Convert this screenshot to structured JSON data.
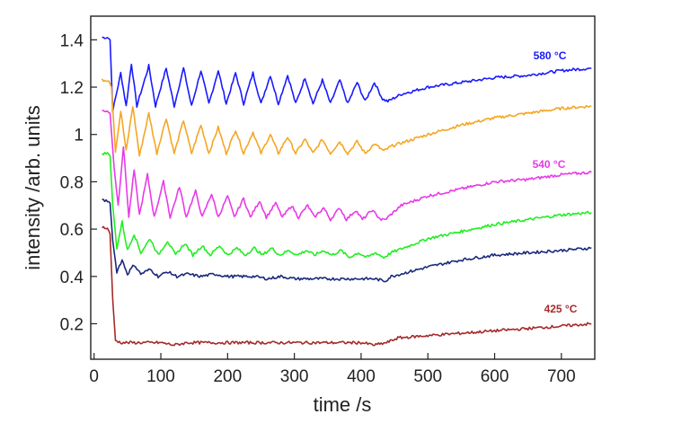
{
  "chart_data": {
    "type": "line",
    "title": "",
    "xlabel": "time /s",
    "ylabel": "intensity /arb. units",
    "xlim": [
      -5,
      750
    ],
    "ylim": [
      0.05,
      1.5
    ],
    "x_ticks": [
      0,
      100,
      200,
      300,
      400,
      500,
      600,
      700
    ],
    "y_ticks": [
      {
        "value": 0.2,
        "label": "0.2"
      },
      {
        "value": 0.4,
        "label": "0.4"
      },
      {
        "value": 0.6,
        "label": "0.6"
      },
      {
        "value": 0.8,
        "label": "0.8"
      },
      {
        "value": 1.0,
        "label": "1"
      },
      {
        "value": 1.2,
        "label": "1.2"
      },
      {
        "value": 1.4,
        "label": "1.4"
      }
    ],
    "grid": false,
    "series": [
      {
        "label": "580 °C",
        "color": "#1a1aff",
        "points": [
          [
            12,
            1.41
          ],
          [
            20,
            1.41
          ],
          [
            24,
            1.4
          ],
          [
            28,
            1.1
          ],
          [
            40,
            1.26
          ],
          [
            48,
            1.12
          ],
          [
            56,
            1.3
          ],
          [
            64,
            1.12
          ],
          [
            82,
            1.29
          ],
          [
            92,
            1.12
          ],
          [
            108,
            1.28
          ],
          [
            120,
            1.12
          ],
          [
            134,
            1.28
          ],
          [
            146,
            1.12
          ],
          [
            160,
            1.27
          ],
          [
            172,
            1.13
          ],
          [
            186,
            1.27
          ],
          [
            198,
            1.13
          ],
          [
            212,
            1.26
          ],
          [
            224,
            1.13
          ],
          [
            238,
            1.26
          ],
          [
            250,
            1.13
          ],
          [
            264,
            1.25
          ],
          [
            276,
            1.13
          ],
          [
            290,
            1.25
          ],
          [
            302,
            1.13
          ],
          [
            316,
            1.24
          ],
          [
            328,
            1.13
          ],
          [
            342,
            1.23
          ],
          [
            354,
            1.13
          ],
          [
            368,
            1.23
          ],
          [
            380,
            1.13
          ],
          [
            394,
            1.22
          ],
          [
            406,
            1.14
          ],
          [
            420,
            1.22
          ],
          [
            432,
            1.15
          ],
          [
            440,
            1.14
          ],
          [
            460,
            1.17
          ],
          [
            500,
            1.2
          ],
          [
            550,
            1.22
          ],
          [
            600,
            1.24
          ],
          [
            650,
            1.25
          ],
          [
            700,
            1.27
          ],
          [
            745,
            1.28
          ]
        ]
      },
      {
        "label": "",
        "color": "#f5a623",
        "points": [
          [
            12,
            1.23
          ],
          [
            22,
            1.23
          ],
          [
            26,
            1.2
          ],
          [
            32,
            0.93
          ],
          [
            40,
            1.1
          ],
          [
            48,
            0.93
          ],
          [
            58,
            1.12
          ],
          [
            68,
            0.91
          ],
          [
            82,
            1.09
          ],
          [
            94,
            0.92
          ],
          [
            108,
            1.07
          ],
          [
            120,
            0.92
          ],
          [
            134,
            1.06
          ],
          [
            146,
            0.92
          ],
          [
            160,
            1.04
          ],
          [
            172,
            0.92
          ],
          [
            186,
            1.03
          ],
          [
            198,
            0.92
          ],
          [
            212,
            1.02
          ],
          [
            224,
            0.92
          ],
          [
            238,
            1.01
          ],
          [
            250,
            0.92
          ],
          [
            264,
            1.0
          ],
          [
            276,
            0.92
          ],
          [
            290,
            0.99
          ],
          [
            302,
            0.92
          ],
          [
            316,
            0.98
          ],
          [
            328,
            0.92
          ],
          [
            342,
            0.98
          ],
          [
            354,
            0.92
          ],
          [
            368,
            0.97
          ],
          [
            380,
            0.92
          ],
          [
            394,
            0.97
          ],
          [
            406,
            0.92
          ],
          [
            420,
            0.96
          ],
          [
            434,
            0.93
          ],
          [
            445,
            0.95
          ],
          [
            500,
            1.0
          ],
          [
            550,
            1.04
          ],
          [
            600,
            1.07
          ],
          [
            650,
            1.09
          ],
          [
            700,
            1.11
          ],
          [
            745,
            1.12
          ]
        ]
      },
      {
        "label": "540 °C",
        "color": "#e83ae8",
        "points": [
          [
            12,
            1.1
          ],
          [
            20,
            1.1
          ],
          [
            24,
            1.09
          ],
          [
            30,
            0.86
          ],
          [
            36,
            0.7
          ],
          [
            44,
            0.95
          ],
          [
            52,
            0.65
          ],
          [
            60,
            0.85
          ],
          [
            68,
            0.66
          ],
          [
            80,
            0.83
          ],
          [
            90,
            0.65
          ],
          [
            104,
            0.8
          ],
          [
            114,
            0.65
          ],
          [
            128,
            0.78
          ],
          [
            138,
            0.65
          ],
          [
            152,
            0.76
          ],
          [
            162,
            0.65
          ],
          [
            176,
            0.75
          ],
          [
            186,
            0.65
          ],
          [
            200,
            0.74
          ],
          [
            210,
            0.65
          ],
          [
            224,
            0.73
          ],
          [
            234,
            0.65
          ],
          [
            248,
            0.72
          ],
          [
            258,
            0.65
          ],
          [
            272,
            0.71
          ],
          [
            282,
            0.65
          ],
          [
            296,
            0.7
          ],
          [
            306,
            0.65
          ],
          [
            320,
            0.7
          ],
          [
            330,
            0.65
          ],
          [
            344,
            0.69
          ],
          [
            354,
            0.64
          ],
          [
            368,
            0.69
          ],
          [
            378,
            0.64
          ],
          [
            392,
            0.68
          ],
          [
            402,
            0.64
          ],
          [
            416,
            0.68
          ],
          [
            430,
            0.64
          ],
          [
            436,
            0.64
          ],
          [
            460,
            0.7
          ],
          [
            500,
            0.74
          ],
          [
            550,
            0.77
          ],
          [
            600,
            0.8
          ],
          [
            650,
            0.81
          ],
          [
            700,
            0.83
          ],
          [
            745,
            0.84
          ]
        ]
      },
      {
        "label": "",
        "color": "#22ee22",
        "points": [
          [
            12,
            0.92
          ],
          [
            20,
            0.92
          ],
          [
            24,
            0.91
          ],
          [
            28,
            0.7
          ],
          [
            34,
            0.52
          ],
          [
            42,
            0.63
          ],
          [
            50,
            0.51
          ],
          [
            60,
            0.58
          ],
          [
            70,
            0.5
          ],
          [
            84,
            0.56
          ],
          [
            96,
            0.49
          ],
          [
            110,
            0.55
          ],
          [
            122,
            0.49
          ],
          [
            136,
            0.54
          ],
          [
            148,
            0.49
          ],
          [
            162,
            0.53
          ],
          [
            174,
            0.49
          ],
          [
            188,
            0.53
          ],
          [
            200,
            0.49
          ],
          [
            214,
            0.52
          ],
          [
            226,
            0.49
          ],
          [
            240,
            0.52
          ],
          [
            252,
            0.49
          ],
          [
            266,
            0.52
          ],
          [
            278,
            0.49
          ],
          [
            292,
            0.51
          ],
          [
            304,
            0.49
          ],
          [
            318,
            0.51
          ],
          [
            330,
            0.49
          ],
          [
            344,
            0.51
          ],
          [
            356,
            0.49
          ],
          [
            370,
            0.51
          ],
          [
            382,
            0.48
          ],
          [
            396,
            0.5
          ],
          [
            408,
            0.48
          ],
          [
            422,
            0.5
          ],
          [
            434,
            0.48
          ],
          [
            445,
            0.5
          ],
          [
            500,
            0.56
          ],
          [
            550,
            0.59
          ],
          [
            600,
            0.62
          ],
          [
            650,
            0.64
          ],
          [
            700,
            0.66
          ],
          [
            745,
            0.67
          ]
        ]
      },
      {
        "label": "",
        "color": "#1b2a7a",
        "points": [
          [
            12,
            0.72
          ],
          [
            20,
            0.72
          ],
          [
            24,
            0.71
          ],
          [
            28,
            0.55
          ],
          [
            34,
            0.42
          ],
          [
            42,
            0.47
          ],
          [
            50,
            0.41
          ],
          [
            60,
            0.45
          ],
          [
            70,
            0.41
          ],
          [
            84,
            0.43
          ],
          [
            96,
            0.4
          ],
          [
            110,
            0.42
          ],
          [
            124,
            0.4
          ],
          [
            140,
            0.41
          ],
          [
            160,
            0.4
          ],
          [
            180,
            0.41
          ],
          [
            200,
            0.4
          ],
          [
            220,
            0.4
          ],
          [
            240,
            0.4
          ],
          [
            260,
            0.39
          ],
          [
            280,
            0.4
          ],
          [
            300,
            0.39
          ],
          [
            320,
            0.39
          ],
          [
            340,
            0.39
          ],
          [
            360,
            0.39
          ],
          [
            380,
            0.39
          ],
          [
            400,
            0.39
          ],
          [
            420,
            0.39
          ],
          [
            436,
            0.38
          ],
          [
            445,
            0.4
          ],
          [
            500,
            0.44
          ],
          [
            550,
            0.47
          ],
          [
            600,
            0.49
          ],
          [
            650,
            0.5
          ],
          [
            700,
            0.51
          ],
          [
            745,
            0.52
          ]
        ]
      },
      {
        "label": "425 °C",
        "color": "#a52a2a",
        "points": [
          [
            12,
            0.61
          ],
          [
            20,
            0.6
          ],
          [
            24,
            0.58
          ],
          [
            28,
            0.3
          ],
          [
            32,
            0.13
          ],
          [
            40,
            0.12
          ],
          [
            60,
            0.12
          ],
          [
            80,
            0.12
          ],
          [
            100,
            0.12
          ],
          [
            120,
            0.11
          ],
          [
            140,
            0.12
          ],
          [
            160,
            0.12
          ],
          [
            180,
            0.12
          ],
          [
            200,
            0.12
          ],
          [
            220,
            0.12
          ],
          [
            240,
            0.12
          ],
          [
            260,
            0.12
          ],
          [
            280,
            0.12
          ],
          [
            300,
            0.12
          ],
          [
            320,
            0.12
          ],
          [
            340,
            0.12
          ],
          [
            360,
            0.12
          ],
          [
            380,
            0.12
          ],
          [
            400,
            0.12
          ],
          [
            420,
            0.11
          ],
          [
            438,
            0.12
          ],
          [
            455,
            0.14
          ],
          [
            500,
            0.15
          ],
          [
            550,
            0.16
          ],
          [
            600,
            0.17
          ],
          [
            650,
            0.18
          ],
          [
            700,
            0.19
          ],
          [
            745,
            0.2
          ]
        ]
      }
    ]
  }
}
